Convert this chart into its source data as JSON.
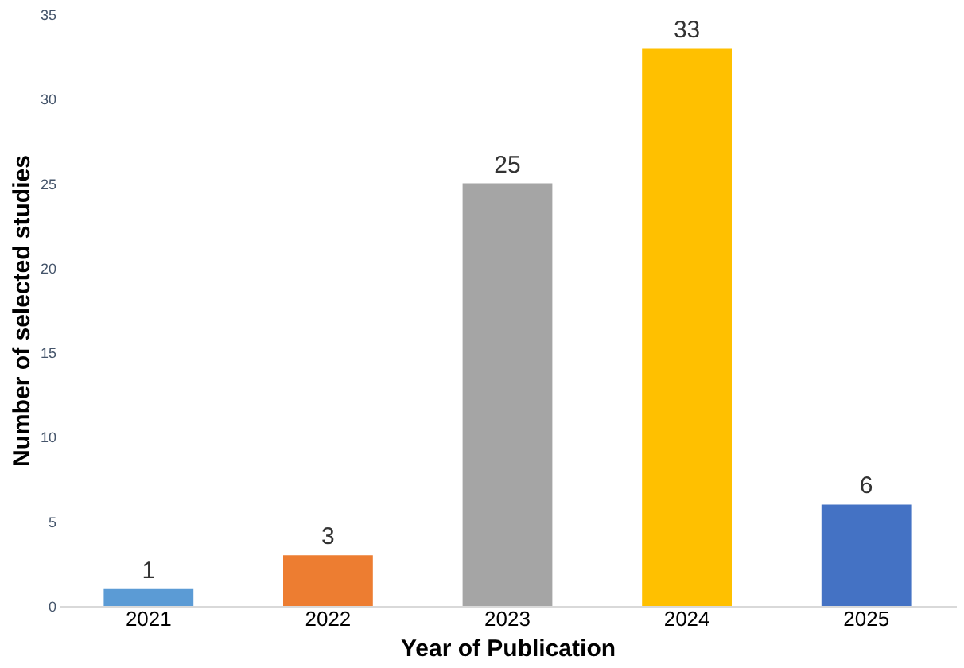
{
  "chart_data": {
    "type": "bar",
    "xlabel": "Year of Publication",
    "ylabel": "Number of selected studies",
    "categories": [
      "2021",
      "2022",
      "2023",
      "2024",
      "2025"
    ],
    "values": [
      1,
      3,
      25,
      33,
      6
    ],
    "colors": [
      "#5b9bd5",
      "#ed7d31",
      "#a5a5a5",
      "#ffc000",
      "#4472c4"
    ],
    "ylim": [
      0,
      35
    ],
    "yticks": [
      0,
      5,
      10,
      15,
      20,
      25,
      30,
      35
    ],
    "grid": false,
    "legend": false,
    "data_labels": true
  }
}
